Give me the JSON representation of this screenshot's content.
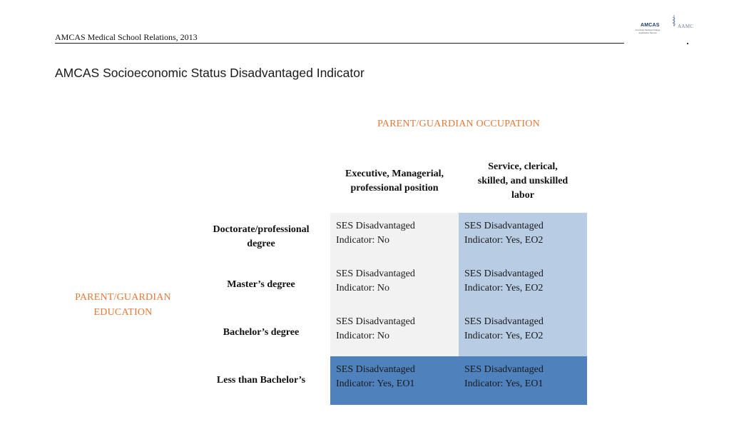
{
  "header": {
    "text": "AMCAS Medical School Relations, 2013",
    "logo": {
      "amcas": "AMCAS",
      "sub": "American Medical College Application Service",
      "aamc": "AAMC"
    }
  },
  "title": "AMCAS Socioeconomic Status Disadvantaged Indicator",
  "matrix": {
    "column_group_label": "PARENT/GUARDIAN OCCUPATION",
    "row_group_label": {
      "line1": "PARENT/GUARDIAN",
      "line2": "EDUCATION"
    },
    "columns": [
      {
        "line1": "Executive, Managerial,",
        "line2": "professional position",
        "line3": ""
      },
      {
        "line1": "Service, clerical,",
        "line2": "skilled, and unskilled",
        "line3": "labor"
      }
    ],
    "rows": [
      {
        "line1": "Doctorate/professional",
        "line2": "degree"
      },
      {
        "line1": "Master’s degree",
        "line2": ""
      },
      {
        "line1": "Bachelor’s degree",
        "line2": ""
      },
      {
        "line1": "Less than Bachelor’s",
        "line2": ""
      }
    ],
    "cells": [
      [
        {
          "line1": "SES Disadvantaged",
          "line2": "Indicator: No"
        },
        {
          "line1": "SES Disadvantaged",
          "line2": "Indicator: Yes, EO2"
        }
      ],
      [
        {
          "line1": "SES Disadvantaged",
          "line2": "Indicator: No"
        },
        {
          "line1": "SES Disadvantaged",
          "line2": "Indicator: Yes, EO2"
        }
      ],
      [
        {
          "line1": "SES Disadvantaged",
          "line2": "Indicator: No"
        },
        {
          "line1": "SES Disadvantaged",
          "line2": "Indicator: Yes, EO2"
        }
      ],
      [
        {
          "line1": "SES Disadvantaged",
          "line2": "Indicator: Yes, EO1"
        },
        {
          "line1": "SES Disadvantaged",
          "line2": "Indicator: Yes, EO1"
        }
      ]
    ],
    "colors": {
      "no": "#f2f2f2",
      "eo2": "#b8cce4",
      "eo1": "#4f81bd",
      "accent_label": "#e07a3a"
    }
  }
}
